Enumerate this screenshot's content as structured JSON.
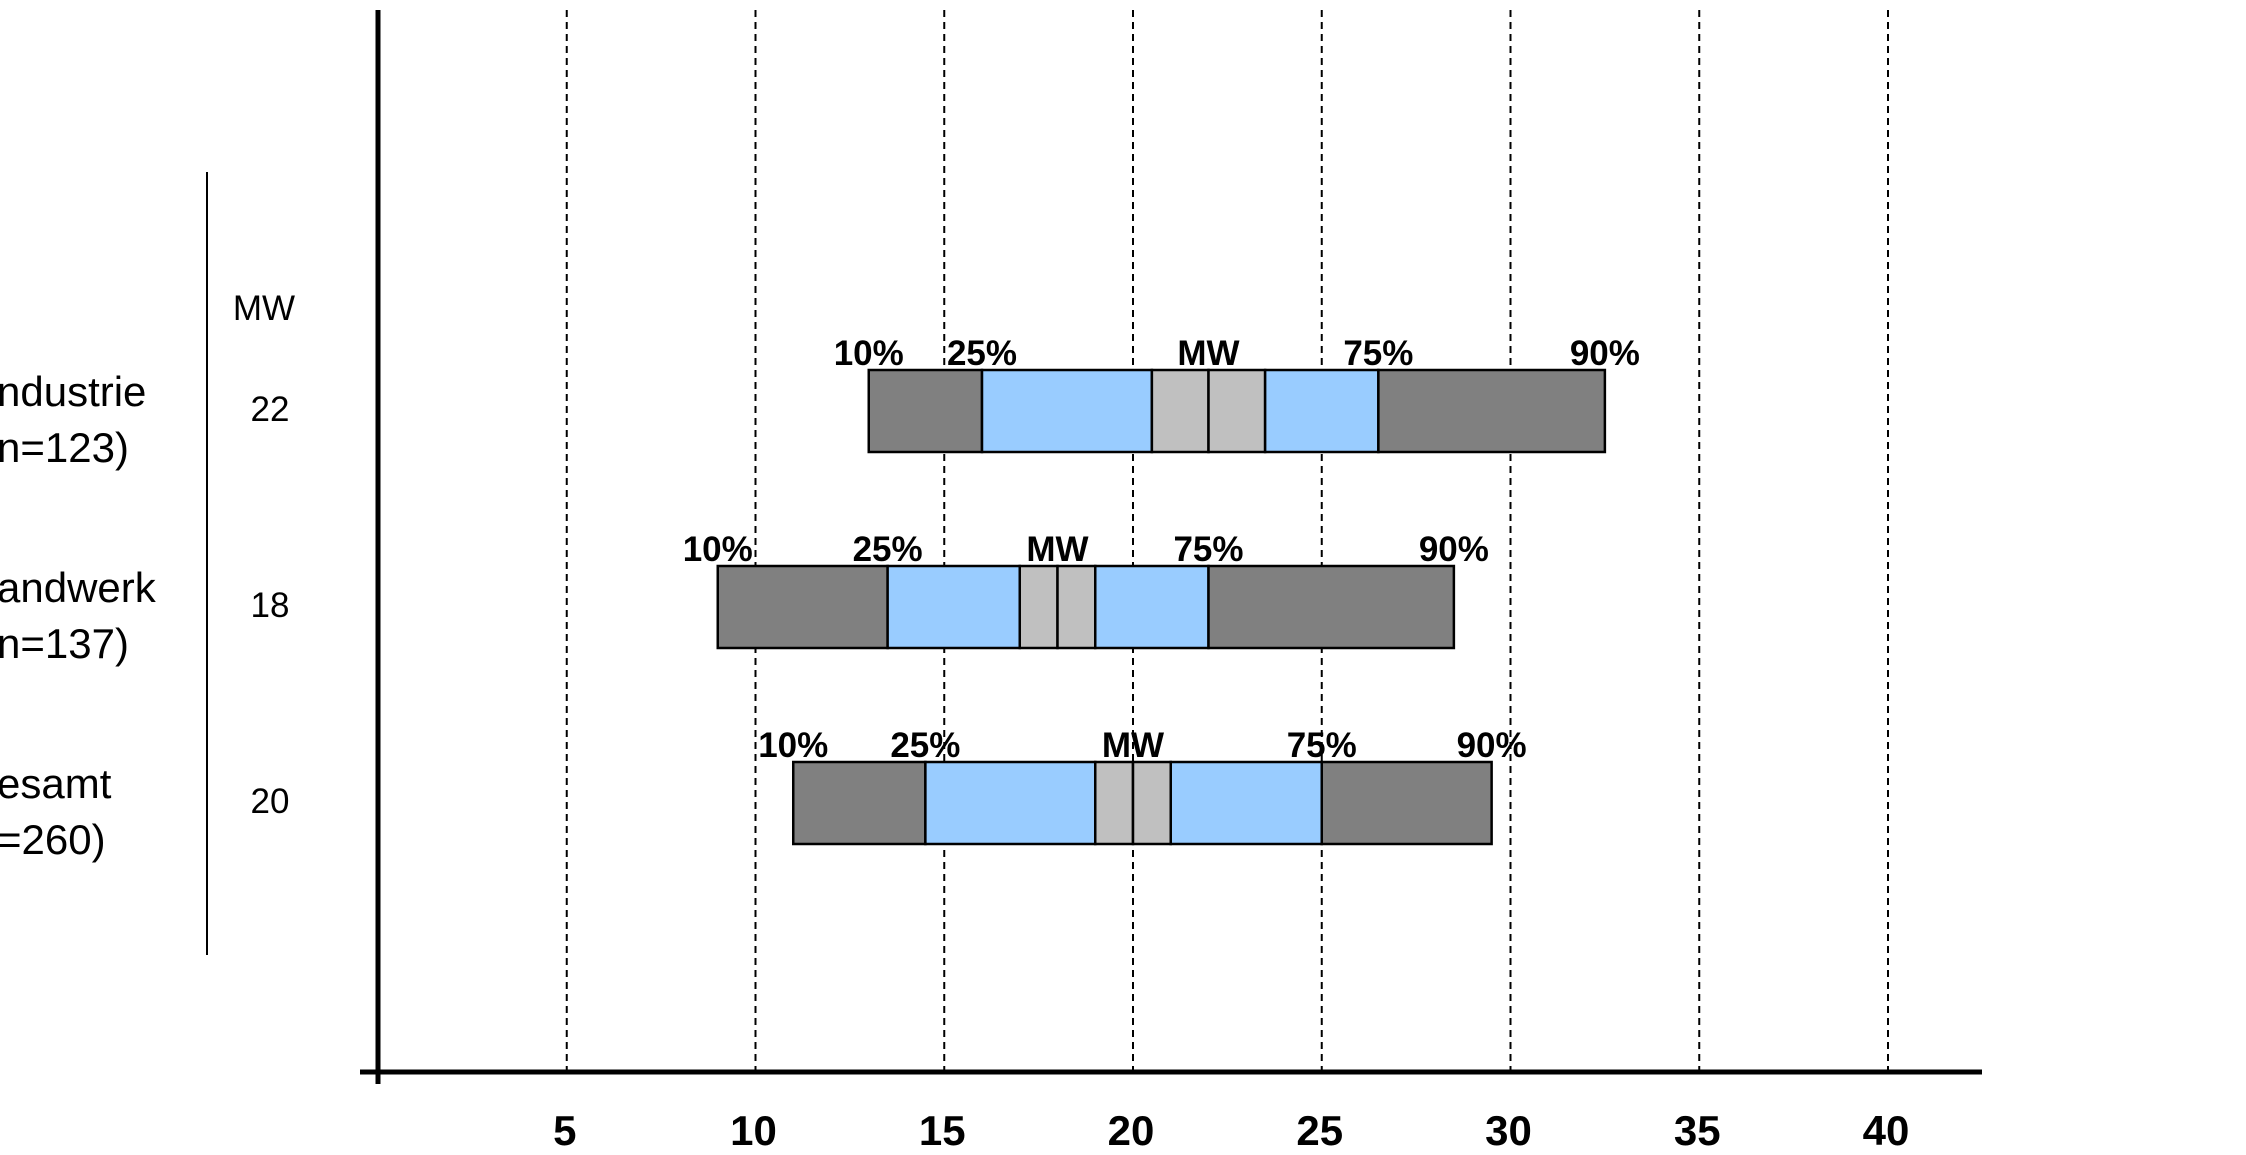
{
  "chart_data": {
    "type": "box",
    "x_ticks": [
      5,
      10,
      15,
      20,
      25,
      30,
      35,
      40
    ],
    "xlim": [
      0,
      42.5
    ],
    "grid": "vertical dashed at each tick",
    "mw_header": "MW",
    "percentile_labels": [
      "10%",
      "25%",
      "MW",
      "75%",
      "90%"
    ],
    "colors": {
      "outer": "#808080",
      "inner": "#99ccff",
      "center": "#c0c0c0",
      "outline": "#000000"
    },
    "rows": [
      {
        "label_line1": "ndustrie",
        "label_line2": "n=123)",
        "mw": "22",
        "p10": 13.0,
        "p25": 16.0,
        "mw_lo": 20.5,
        "mw_hi": 23.5,
        "p75": 26.5,
        "p90": 32.5
      },
      {
        "label_line1": "andwerk",
        "label_line2": "n=137)",
        "mw": "18",
        "p10": 9.0,
        "p25": 13.5,
        "mw_lo": 17.0,
        "mw_hi": 19.0,
        "p75": 22.0,
        "p90": 28.5
      },
      {
        "label_line1": "esamt",
        "label_line2": "=260)",
        "mw": "20",
        "p10": 11.0,
        "p25": 14.5,
        "mw_lo": 19.0,
        "mw_hi": 21.0,
        "p75": 25.0,
        "p90": 29.5
      }
    ]
  }
}
